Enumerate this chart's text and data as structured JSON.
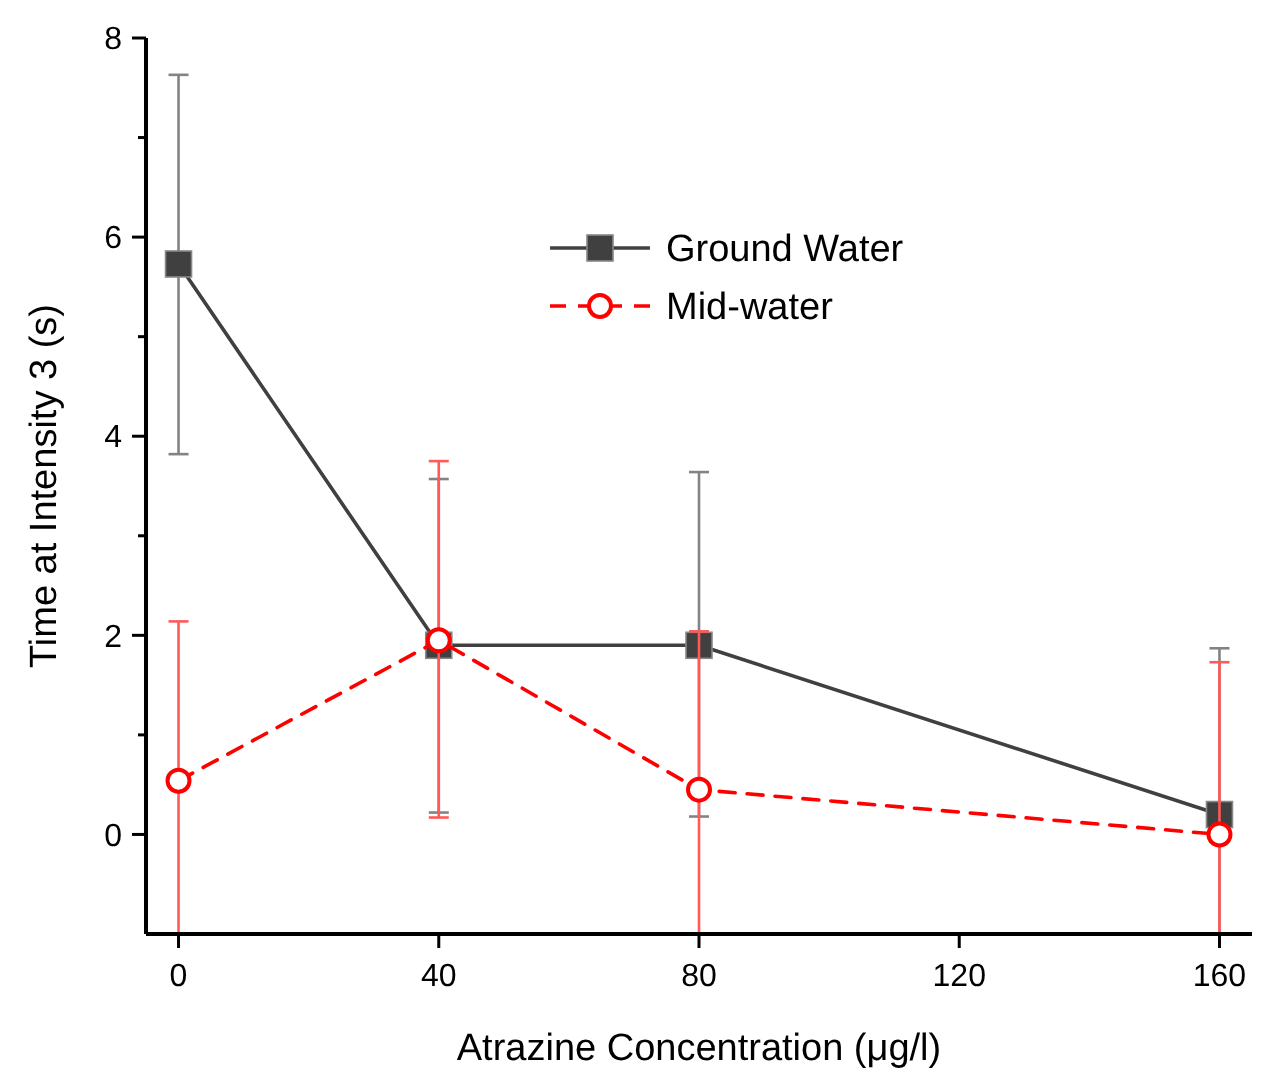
{
  "chart_data": {
    "type": "line",
    "xlabel": "Atrazine Concentration (μg/l)",
    "ylabel": "Time at Intensity 3 (s)",
    "x": [
      0,
      40,
      80,
      160
    ],
    "xlim": [
      -5,
      165
    ],
    "xticks": [
      0,
      40,
      80,
      120,
      160
    ],
    "ylim": [
      -1,
      8
    ],
    "yticks": [
      0,
      {
        "value": 1,
        "label": null
      },
      2,
      {
        "value": 3,
        "label": null
      },
      4,
      {
        "value": 5,
        "label": null
      },
      6,
      {
        "value": 7,
        "label": null
      },
      8
    ],
    "series": [
      {
        "name": "Ground Water",
        "color": "#404040",
        "values": [
          5.73,
          1.9,
          1.9,
          0.2
        ],
        "errors": [
          [
            3.82,
            7.63
          ],
          [
            0.22,
            3.57
          ],
          [
            0.18,
            3.64
          ],
          [
            -1,
            1.87
          ]
        ],
        "marker": "square",
        "line_style": "solid"
      },
      {
        "name": "Mid-water",
        "color": "#ff0000",
        "values": [
          0.54,
          1.95,
          0.45,
          0
        ],
        "errors": [
          [
            -1,
            2.14
          ],
          [
            0.17,
            3.75
          ],
          [
            -1,
            2.04
          ],
          [
            -1,
            1.73
          ]
        ],
        "marker": "circle",
        "line_style": "dashed"
      }
    ],
    "legend": "top right",
    "grid": false
  }
}
